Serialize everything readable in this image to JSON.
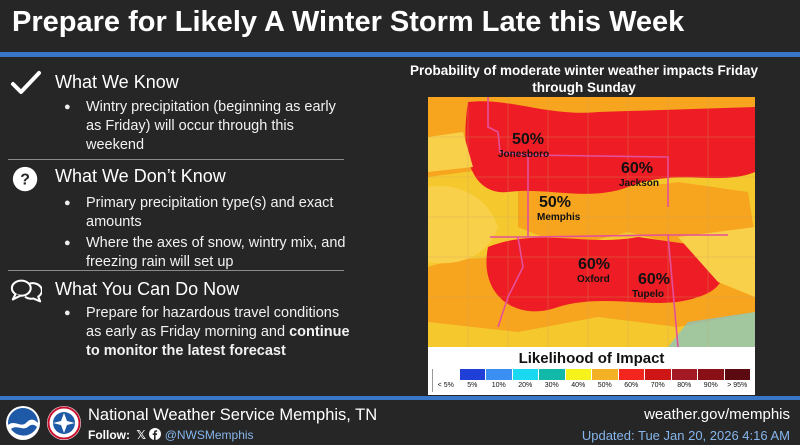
{
  "title": "Prepare for Likely A Winter Storm Late this Week",
  "sections": [
    {
      "icon": "checkmark-icon",
      "heading": "What We Know",
      "bullets": [
        "Wintry precipitation (beginning as early as Friday) will occur through this weekend"
      ]
    },
    {
      "icon": "question-icon",
      "heading": "What We Don’t Know",
      "bullets": [
        "Primary precipitation type(s) and exact amounts",
        "Where the axes of snow, wintry mix, and freezing rain will set up"
      ]
    },
    {
      "icon": "speech-bubbles-icon",
      "heading": "What You Can Do Now",
      "bullet_prefix": "Prepare for hazardous travel conditions as early as Friday morning and ",
      "bullet_bold": "continue to monitor the latest forecast"
    }
  ],
  "map": {
    "title": "Probability of moderate winter weather impacts Friday through Sunday",
    "labels": [
      {
        "pct": "50%",
        "city": "Jonesboro"
      },
      {
        "pct": "60%",
        "city": "Jackson"
      },
      {
        "pct": "50%",
        "city": "Memphis"
      },
      {
        "pct": "60%",
        "city": "Oxford"
      },
      {
        "pct": "60%",
        "city": "Tupelo"
      }
    ],
    "colors": {
      "yellow": "#f6cd2a",
      "orange": "#f7a41f",
      "red": "#ee1c24",
      "border": "#e4509a"
    }
  },
  "legend": {
    "title": "Likelihood of Impact",
    "items": [
      {
        "label": "< 5%",
        "color": "#ffffff"
      },
      {
        "label": "5%",
        "color": "#1f3fd6"
      },
      {
        "label": "10%",
        "color": "#3b8ff2"
      },
      {
        "label": "20%",
        "color": "#19d8f0"
      },
      {
        "label": "30%",
        "color": "#13b9a8"
      },
      {
        "label": "40%",
        "color": "#f5f21c"
      },
      {
        "label": "50%",
        "color": "#f3b226"
      },
      {
        "label": "60%",
        "color": "#f2261f"
      },
      {
        "label": "70%",
        "color": "#cf1616"
      },
      {
        "label": "80%",
        "color": "#a41a24"
      },
      {
        "label": "90%",
        "color": "#8a1018"
      },
      {
        "label": "> 95%",
        "color": "#5a0a10"
      }
    ]
  },
  "footer": {
    "office": "National Weather Service Memphis, TN",
    "follow_label": "Follow:",
    "handle": "@NWSMemphis",
    "website": "weather.gov/memphis",
    "updated": "Updated: Tue Jan 20, 2026 4:16 AM",
    "logos": [
      "noaa-logo",
      "nws-logo"
    ]
  },
  "accent_color": "#3a76c8"
}
